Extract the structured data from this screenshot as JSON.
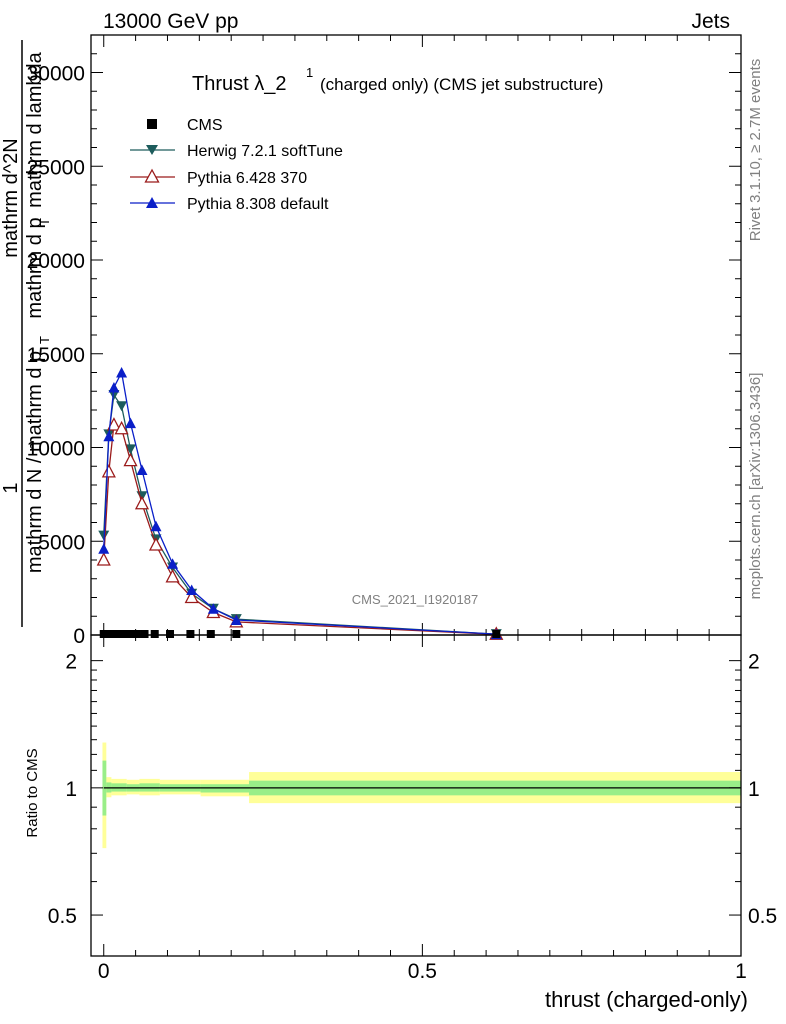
{
  "header": {
    "left": "13000 GeV pp",
    "right": "Jets"
  },
  "side": {
    "rivet": "Rivet 3.1.10, ≥ 2.7M events",
    "mcplots": "mcplots.cern.ch [arXiv:1306.3436]"
  },
  "chart_data": {
    "type": "line",
    "title_main": "Thrust λ_2",
    "title_sup": "1",
    "title_rest": "(charged only) (CMS jet substructure)",
    "watermark": "CMS_2021_I1920187",
    "ylabel_parts": [
      "1",
      "mathrm d N / mathrm d p",
      "T",
      "mathrm d^2N",
      "mathrm d p",
      "T",
      " mathrm d lambda"
    ],
    "xlabel": "thrust (charged-only)",
    "ratio_ylabel": "Ratio to CMS",
    "xlim": [
      -0.02,
      1.0
    ],
    "ylim": [
      0,
      32000
    ],
    "yticks": [
      0,
      5000,
      10000,
      15000,
      20000,
      25000,
      30000
    ],
    "ytick_labels": [
      "0",
      "5000",
      "10000",
      "15000",
      "20000",
      "25000",
      "30000"
    ],
    "xticks": [
      0,
      0.5,
      1
    ],
    "xtick_labels": [
      "0",
      "0.5",
      "1"
    ],
    "ratio_ylim": [
      0.4,
      2.3
    ],
    "ratio_ticks": [
      0.5,
      1,
      2
    ],
    "ratio_tick_labels": [
      "0.5",
      "1",
      "2"
    ],
    "legend": [
      "CMS",
      "Herwig 7.2.1 softTune",
      "Pythia 6.428 370",
      "Pythia 8.308 default"
    ],
    "cms_x": [
      0.0,
      0.008,
      0.016,
      0.024,
      0.032,
      0.04,
      0.052,
      0.064,
      0.08,
      0.104,
      0.136,
      0.168,
      0.208,
      0.616
    ],
    "series": [
      {
        "name": "Herwig 7.2.1 softTune",
        "color": "#1d5c5c",
        "marker": "triangle-down",
        "x": [
          0.0,
          0.008,
          0.016,
          0.028,
          0.042,
          0.06,
          0.082,
          0.108,
          0.138,
          0.172,
          0.208,
          0.616
        ],
        "y": [
          5300,
          10700,
          12800,
          12200,
          9900,
          7400,
          5100,
          3600,
          2200,
          1400,
          850,
          50
        ]
      },
      {
        "name": "Pythia 6.428 370",
        "color": "#9b1b1b",
        "marker": "triangle-open",
        "x": [
          0.0,
          0.008,
          0.016,
          0.028,
          0.042,
          0.06,
          0.082,
          0.108,
          0.138,
          0.172,
          0.208,
          0.616
        ],
        "y": [
          4000,
          8700,
          11200,
          11000,
          9300,
          7000,
          4800,
          3100,
          2000,
          1200,
          700,
          40
        ]
      },
      {
        "name": "Pythia 8.308 default",
        "color": "#0a1fc8",
        "marker": "triangle-up",
        "x": [
          0.0,
          0.008,
          0.016,
          0.028,
          0.042,
          0.06,
          0.082,
          0.108,
          0.138,
          0.172,
          0.208,
          0.616
        ],
        "y": [
          4600,
          10600,
          13200,
          14000,
          11300,
          8800,
          5800,
          3800,
          2400,
          1400,
          800,
          50
        ]
      }
    ],
    "ratio_bands": [
      {
        "x0": -0.002,
        "x1": 0.004,
        "yellow": [
          0.72,
          1.28
        ],
        "green": [
          0.86,
          1.16
        ]
      },
      {
        "x0": 0.004,
        "x1": 0.012,
        "yellow": [
          0.95,
          1.06
        ],
        "green": [
          0.975,
          1.03
        ]
      },
      {
        "x0": 0.012,
        "x1": 0.036,
        "yellow": [
          0.96,
          1.05
        ],
        "green": [
          0.98,
          1.025
        ]
      },
      {
        "x0": 0.036,
        "x1": 0.056,
        "yellow": [
          0.965,
          1.045
        ],
        "green": [
          0.98,
          1.02
        ]
      },
      {
        "x0": 0.056,
        "x1": 0.088,
        "yellow": [
          0.96,
          1.05
        ],
        "green": [
          0.98,
          1.025
        ]
      },
      {
        "x0": 0.088,
        "x1": 0.152,
        "yellow": [
          0.965,
          1.045
        ],
        "green": [
          0.98,
          1.02
        ]
      },
      {
        "x0": 0.152,
        "x1": 0.228,
        "yellow": [
          0.955,
          1.045
        ],
        "green": [
          0.975,
          1.02
        ]
      },
      {
        "x0": 0.228,
        "x1": 1.0,
        "yellow": [
          0.92,
          1.09
        ],
        "green": [
          0.96,
          1.04
        ]
      }
    ]
  }
}
